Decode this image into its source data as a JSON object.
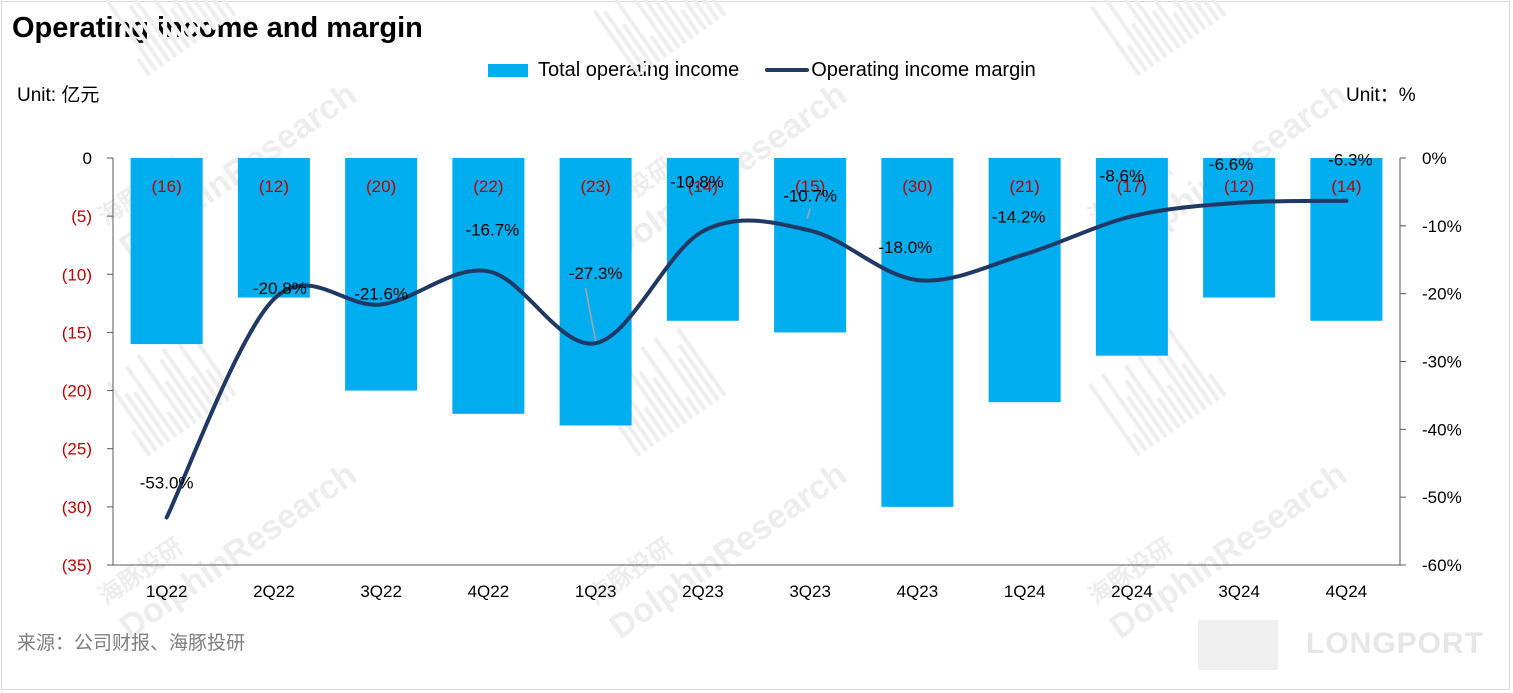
{
  "title": "Operating income and margin",
  "unit_left": "Unit: 亿元",
  "unit_right": "Unit：%",
  "source": "来源：公司财报、海豚投研",
  "watermark": "DolphinResearch",
  "watermark_cn": "海豚投研",
  "logo_text": "LONGPORT",
  "colors": {
    "bar": "#00aeef",
    "line": "#1f3864",
    "negative_label": "#c00000"
  },
  "chart_data": {
    "type": "bar+line",
    "title": "Operating income and margin",
    "categories": [
      "1Q22",
      "2Q22",
      "3Q22",
      "4Q22",
      "1Q23",
      "2Q23",
      "3Q23",
      "4Q23",
      "1Q24",
      "2Q24",
      "3Q24",
      "4Q24"
    ],
    "series": [
      {
        "name": "Total operating income",
        "type": "bar",
        "axis": "left",
        "values": [
          -16,
          -12,
          -20,
          -22,
          -23,
          -14,
          -15,
          -30,
          -21,
          -17,
          -12,
          -14
        ],
        "labels": [
          "(16)",
          "(12)",
          "(20)",
          "(22)",
          "(23)",
          "(14)",
          "(15)",
          "(30)",
          "(21)",
          "(17)",
          "(12)",
          "(14)"
        ]
      },
      {
        "name": "Operating income margin",
        "type": "line",
        "axis": "right",
        "values": [
          -53.0,
          -20.8,
          -21.6,
          -16.7,
          -27.3,
          -10.8,
          -10.7,
          -18.0,
          -14.2,
          -8.6,
          -6.6,
          -6.3
        ],
        "labels": [
          "-53.0%",
          "-20.8%",
          "-21.6%",
          "-16.7%",
          "-27.3%",
          "-10.8%",
          "-10.7%",
          "-18.0%",
          "-14.2%",
          "-8.6%",
          "-6.6%",
          "-6.3%"
        ]
      }
    ],
    "y_left": {
      "min": -35,
      "max": 0,
      "ticks": [
        0,
        -5,
        -10,
        -15,
        -20,
        -25,
        -30,
        -35
      ],
      "tick_labels": [
        "0",
        "(5)",
        "(10)",
        "(15)",
        "(20)",
        "(25)",
        "(30)",
        "(35)"
      ]
    },
    "y_right": {
      "min": -60,
      "max": 0,
      "ticks": [
        0,
        -10,
        -20,
        -30,
        -40,
        -50,
        -60
      ],
      "tick_labels": [
        "0%",
        "-10%",
        "-20%",
        "-30%",
        "-40%",
        "-50%",
        "-60%"
      ]
    },
    "legend": [
      "Total operating income",
      "Operating income margin"
    ],
    "legend_position": "top-center"
  }
}
